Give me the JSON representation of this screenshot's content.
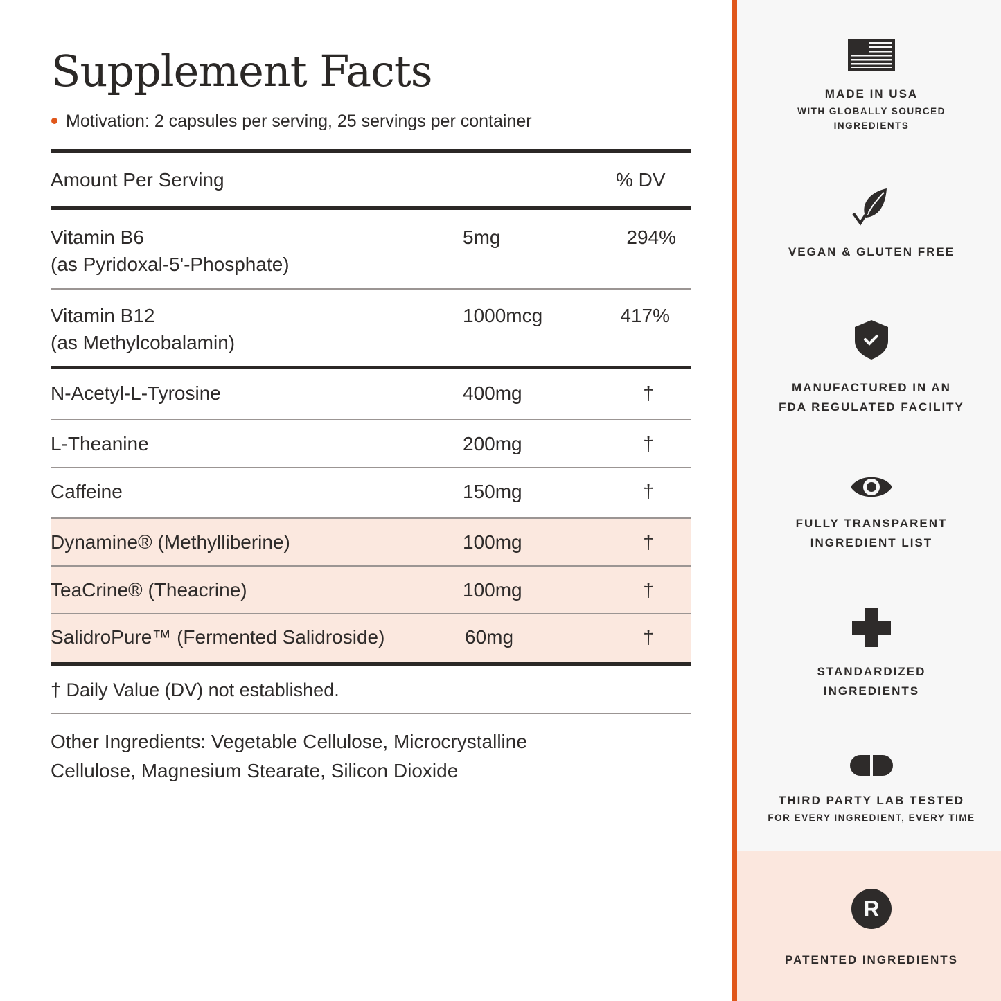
{
  "title": "Supplement Facts",
  "serving": "Motivation: 2 capsules per serving, 25 servings per container",
  "table": {
    "header": {
      "amount": "Amount Per Serving",
      "dv": "% DV"
    },
    "rows": [
      {
        "name": "Vitamin B6",
        "sub": "(as Pyridoxal-5'-Phosphate)",
        "amount": "5mg",
        "dv": "294%"
      },
      {
        "name": "Vitamin B12",
        "sub": "(as Methylcobalamin)",
        "amount": "1000mcg",
        "dv": "417%"
      },
      {
        "name": "N-Acetyl-L-Tyrosine",
        "amount": "400mg",
        "dv": "†"
      },
      {
        "name": "L-Theanine",
        "amount": "200mg",
        "dv": "†"
      },
      {
        "name": "Caffeine",
        "amount": "150mg",
        "dv": "†"
      },
      {
        "name": "Dynamine® (Methylliberine)",
        "amount": "100mg",
        "dv": "†",
        "highlighted": true
      },
      {
        "name": "TeaCrine® (Theacrine)",
        "amount": "100mg",
        "dv": "†",
        "highlighted": true
      },
      {
        "name": "SalidroPure™ (Fermented Salidroside)",
        "amount": "60mg",
        "dv": "†",
        "highlighted": true
      }
    ]
  },
  "footnote": "† Daily Value (DV) not established.",
  "other_ingredients": "Other Ingredients: Vegetable Cellulose, Microcrystalline Cellulose, Magnesium Stearate, Silicon Dioxide",
  "badges": [
    {
      "icon": "us-flag-icon",
      "title": "MADE IN USA",
      "sub1": "WITH GLOBALLY SOURCED",
      "sub2": "INGREDIENTS"
    },
    {
      "icon": "leaf-check-icon",
      "title": "VEGAN & GLUTEN FREE"
    },
    {
      "icon": "shield-check-icon",
      "title": "MANUFACTURED IN AN",
      "title2": "FDA REGULATED FACILITY"
    },
    {
      "icon": "eye-icon",
      "title": "FULLY TRANSPARENT",
      "title2": "INGREDIENT LIST"
    },
    {
      "icon": "plus-icon",
      "title": "STANDARDIZED",
      "title2": "INGREDIENTS"
    },
    {
      "icon": "capsule-icon",
      "title": "THIRD PARTY LAB TESTED",
      "sub1": "FOR EVERY INGREDIENT, EVERY TIME"
    },
    {
      "icon": "registered-icon",
      "title": "PATENTED INGREDIENTS",
      "glyph": "R"
    }
  ],
  "colors": {
    "accent": "#e0571b",
    "highlight": "#fbe8df",
    "panel": "#f7f7f7",
    "ink": "#2e2b2a"
  }
}
